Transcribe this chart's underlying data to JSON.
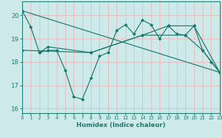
{
  "xlabel": "Humidex (Indice chaleur)",
  "xlim": [
    0,
    23
  ],
  "ylim": [
    15.8,
    20.6
  ],
  "yticks": [
    16,
    17,
    18,
    19,
    20
  ],
  "xticks": [
    0,
    1,
    2,
    3,
    4,
    5,
    6,
    7,
    8,
    9,
    10,
    11,
    12,
    13,
    14,
    15,
    16,
    17,
    18,
    19,
    20,
    21,
    22,
    23
  ],
  "bg_color": "#cde9e9",
  "line_color": "#1a7a6e",
  "series": [
    {
      "x": [
        0,
        1,
        2,
        3,
        4,
        5,
        6,
        7,
        8,
        9,
        10,
        11,
        12,
        13,
        14,
        15,
        16,
        17,
        18,
        19,
        20,
        21,
        22,
        23
      ],
      "y": [
        20.2,
        19.5,
        18.4,
        18.5,
        18.5,
        17.65,
        16.5,
        16.4,
        17.3,
        18.25,
        18.4,
        19.35,
        19.6,
        19.2,
        19.8,
        19.6,
        19.0,
        19.55,
        19.2,
        19.15,
        19.55,
        18.5,
        18.0,
        17.55
      ]
    },
    {
      "x": [
        0,
        23
      ],
      "y": [
        20.2,
        17.55
      ]
    },
    {
      "x": [
        0,
        8,
        14,
        17,
        20,
        23
      ],
      "y": [
        18.5,
        18.4,
        19.15,
        19.55,
        19.55,
        17.55
      ]
    },
    {
      "x": [
        2,
        3,
        8,
        14,
        19,
        21,
        23
      ],
      "y": [
        18.4,
        18.65,
        18.4,
        19.15,
        19.15,
        18.5,
        17.55
      ]
    }
  ]
}
